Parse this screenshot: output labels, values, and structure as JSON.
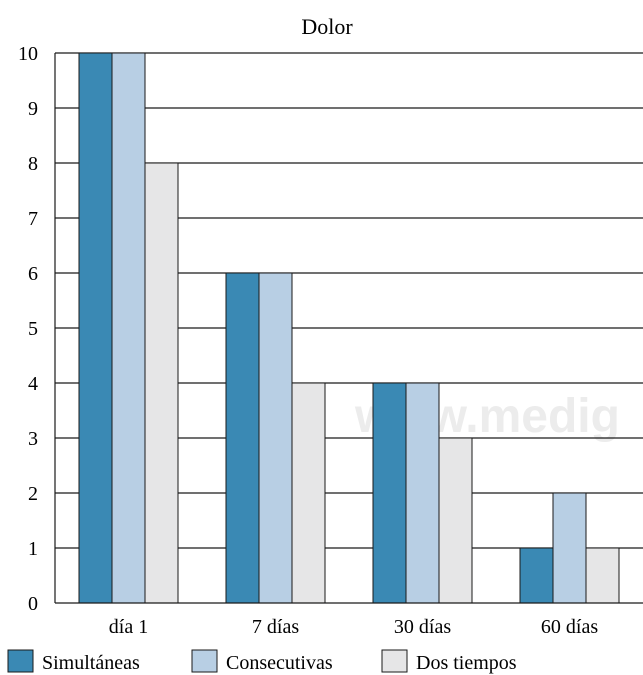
{
  "chart_data": {
    "type": "bar",
    "title": "Dolor",
    "xlabel": "",
    "ylabel": "",
    "categories": [
      "día 1",
      "7 días",
      "30 días",
      "60 días"
    ],
    "series": [
      {
        "name": "Simultáneas",
        "values": [
          10,
          6,
          4,
          1
        ],
        "color": "#3a89b4"
      },
      {
        "name": "Consecutivas",
        "values": [
          10,
          6,
          4,
          2
        ],
        "color": "#b8cfe4"
      },
      {
        "name": "Dos tiempos",
        "values": [
          8,
          4,
          3,
          1
        ],
        "color": "#e6e6e7"
      }
    ],
    "ylim": [
      0,
      10
    ],
    "yticks": [
      0,
      1,
      2,
      3,
      4,
      5,
      6,
      7,
      8,
      9,
      10
    ],
    "grid": true,
    "legend_position": "bottom",
    "watermark": "www.medig"
  }
}
